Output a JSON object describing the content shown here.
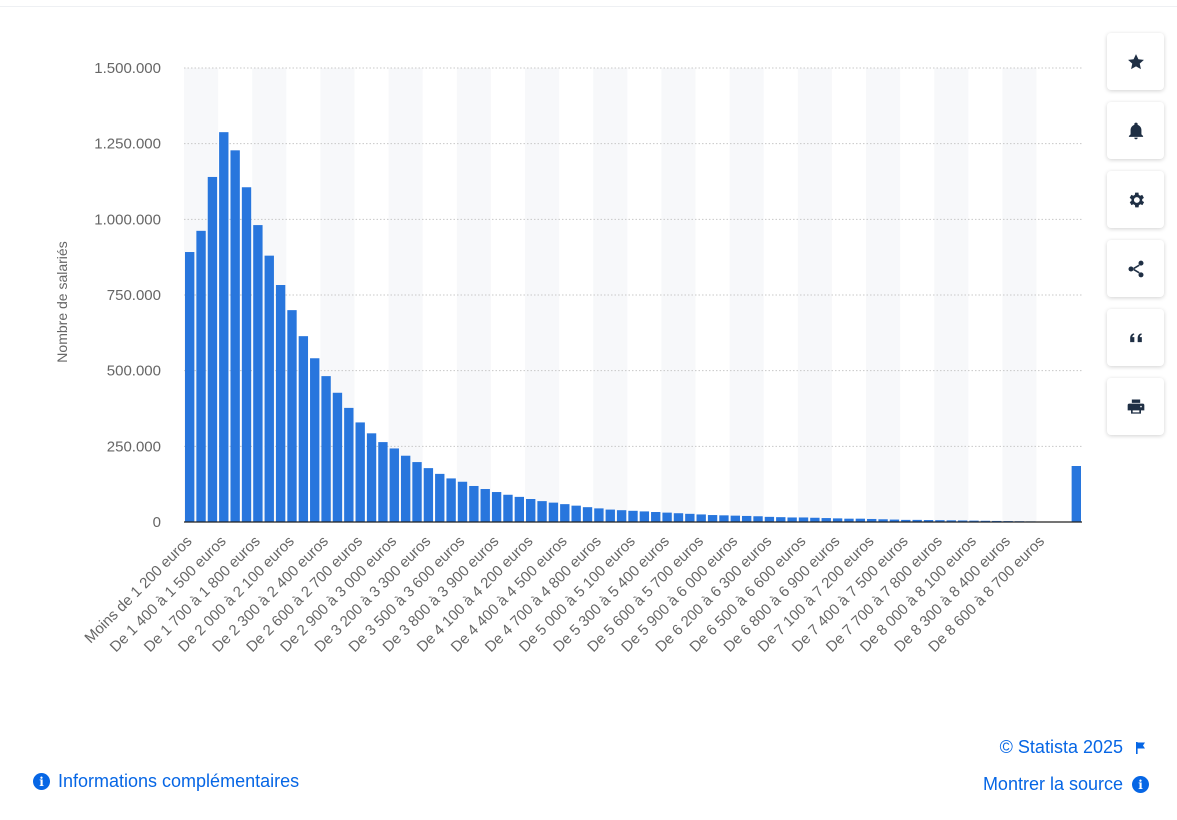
{
  "chart_data": {
    "type": "bar",
    "ylabel": "Nombre de salariés",
    "xlabel": "",
    "ylim": [
      0,
      1500000
    ],
    "yticks": [
      0,
      250000,
      500000,
      750000,
      1000000,
      1250000,
      1500000
    ],
    "ytick_labels": [
      "0",
      "250.000",
      "500.000",
      "750.000",
      "1.000.000",
      "1.250.000",
      "1.500.000"
    ],
    "grid": true,
    "bar_color": "#2876dd",
    "xtick_labels": [
      "Moins de 1 200 euros",
      "De 1 400 à 1 500 euros",
      "De 1 700 à 1 800 euros",
      "De 2 000 à 2 100 euros",
      "De 2 300 à 2 400 euros",
      "De 2 600 à 2 700 euros",
      "De 2 900 à 3 000 euros",
      "De 3 200 à 3 300 euros",
      "De 3 500 à 3 600 euros",
      "De 3 800 à 3 900 euros",
      "De 4 100 à 4 200 euros",
      "De 4 400 à 4 500 euros",
      "De 4 700 à 4 800 euros",
      "De 5 000 à 5 100 euros",
      "De 5 300 à 5 400 euros",
      "De 5 600 à 5 700 euros",
      "De 5 900 à 6 000 euros",
      "De 6 200 à 6 300 euros",
      "De 6 500 à 6 600 euros",
      "De 6 800 à 6 900 euros",
      "De 7 100 à 7 200 euros",
      "De 7 400 à 7 500 euros",
      "De 7 700 à 7 800 euros",
      "De 8 000 à 8 100 euros",
      "De 8 300 à 8 400 euros",
      "De 8 600 à 8 700 euros"
    ],
    "values": [
      892000,
      962000,
      1140000,
      1288000,
      1228000,
      1106000,
      981000,
      880000,
      783000,
      700000,
      614000,
      541000,
      482000,
      427000,
      377000,
      329000,
      293000,
      264000,
      243000,
      219000,
      198000,
      178000,
      159000,
      144000,
      133000,
      119000,
      109000,
      99000,
      90000,
      83000,
      76000,
      69000,
      64000,
      59000,
      54000,
      49000,
      45000,
      41000,
      39000,
      37000,
      35000,
      33000,
      31000,
      29000,
      27000,
      25000,
      23000,
      22000,
      21000,
      20000,
      19000,
      17000,
      16000,
      15000,
      15000,
      14000,
      13000,
      12000,
      11000,
      11000,
      10000,
      9000,
      8000,
      7000,
      7000,
      6500,
      6000,
      5500,
      5000,
      4500,
      4000,
      3500,
      3000,
      2500,
      2000,
      1500,
      1200,
      1000,
      185000
    ]
  },
  "sidebar": {
    "buttons": [
      {
        "icon": "star-icon"
      },
      {
        "icon": "bell-icon"
      },
      {
        "icon": "gear-icon"
      },
      {
        "icon": "share-icon"
      },
      {
        "icon": "quote-icon"
      },
      {
        "icon": "print-icon"
      }
    ]
  },
  "footer": {
    "info_label": "Informations complémentaires",
    "copyright": "© Statista 2025",
    "source_label": "Montrer la source"
  },
  "colors": {
    "accent": "#0666e5",
    "axis_text": "#666666"
  }
}
